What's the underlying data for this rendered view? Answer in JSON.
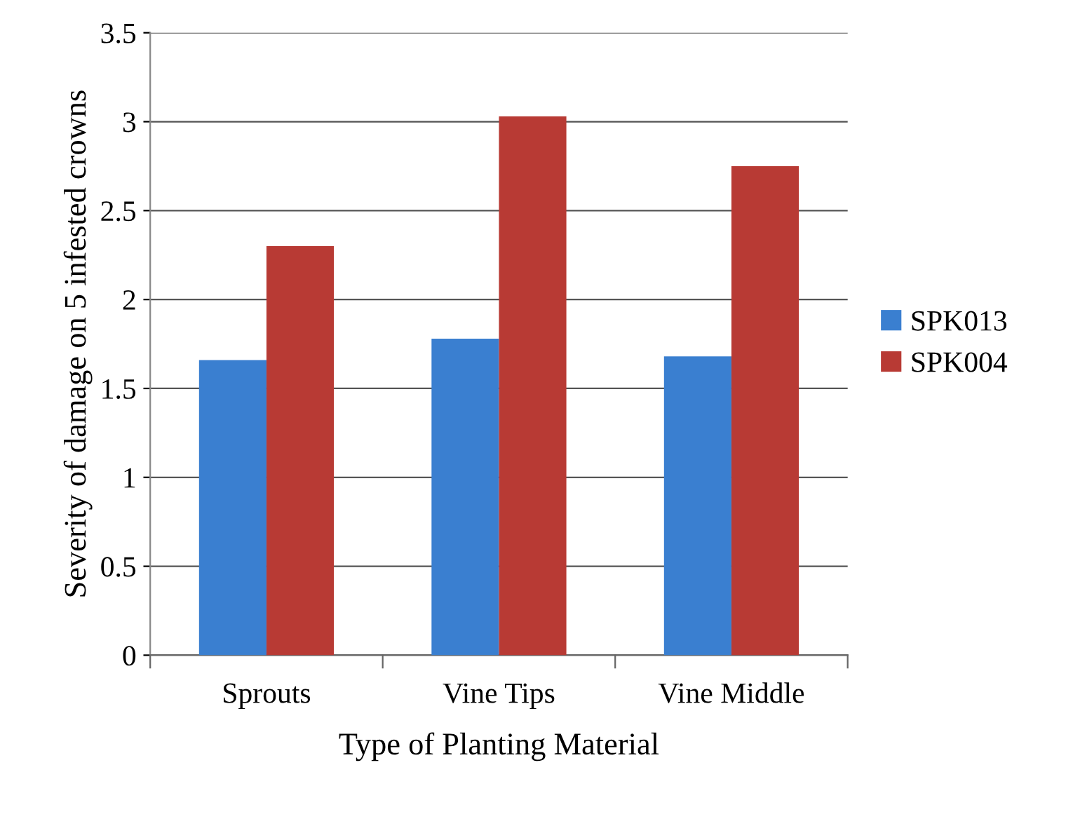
{
  "chart_data": {
    "type": "bar",
    "xlabel": "Type of Planting Material",
    "ylabel": "Severity of damage on 5 infested crowns",
    "categories": [
      "Sprouts",
      "Vine Tips",
      "Vine Middle"
    ],
    "series": [
      {
        "name": "SPK013",
        "color": "#3a7fd0",
        "values": [
          1.66,
          1.78,
          1.68
        ]
      },
      {
        "name": "SPK004",
        "color": "#b83a34",
        "values": [
          2.3,
          3.03,
          2.75
        ]
      }
    ],
    "ylim": [
      0,
      3.5
    ],
    "yticks": [
      0,
      0.5,
      1,
      1.5,
      2,
      2.5,
      3,
      3.5
    ],
    "grid": "y",
    "legend": "right"
  }
}
